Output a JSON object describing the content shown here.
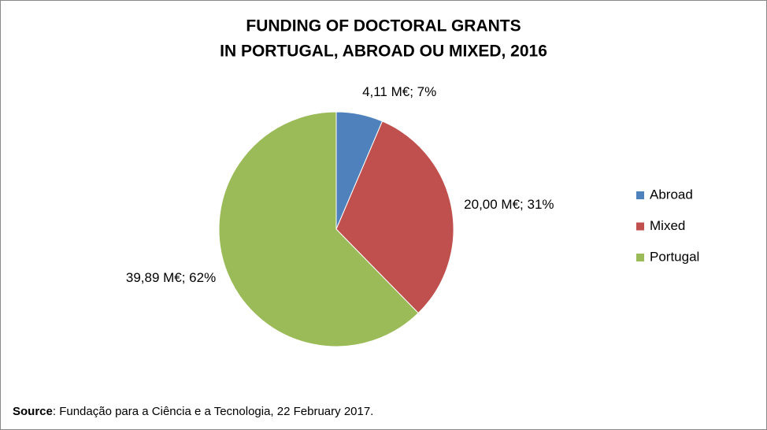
{
  "chart_data": {
    "type": "pie",
    "title": [
      "FUNDING OF DOCTORAL GRANTS",
      "IN PORTUGAL, ABROAD OU MIXED, 2016"
    ],
    "categories": [
      "Abroad",
      "Mixed",
      "Portugal"
    ],
    "values": [
      4.11,
      20.0,
      39.89
    ],
    "value_labels": [
      "4,11 M€; 7%",
      "20,00 M€; 31%",
      "39,89 M€; 62%"
    ],
    "colors": [
      "#4f81bd",
      "#c0504d",
      "#9bbb59"
    ],
    "legend": "right",
    "source": {
      "label": "Source",
      "text": ": Fundação para a Ciência e a Tecnologia, 22 February 2017."
    }
  }
}
